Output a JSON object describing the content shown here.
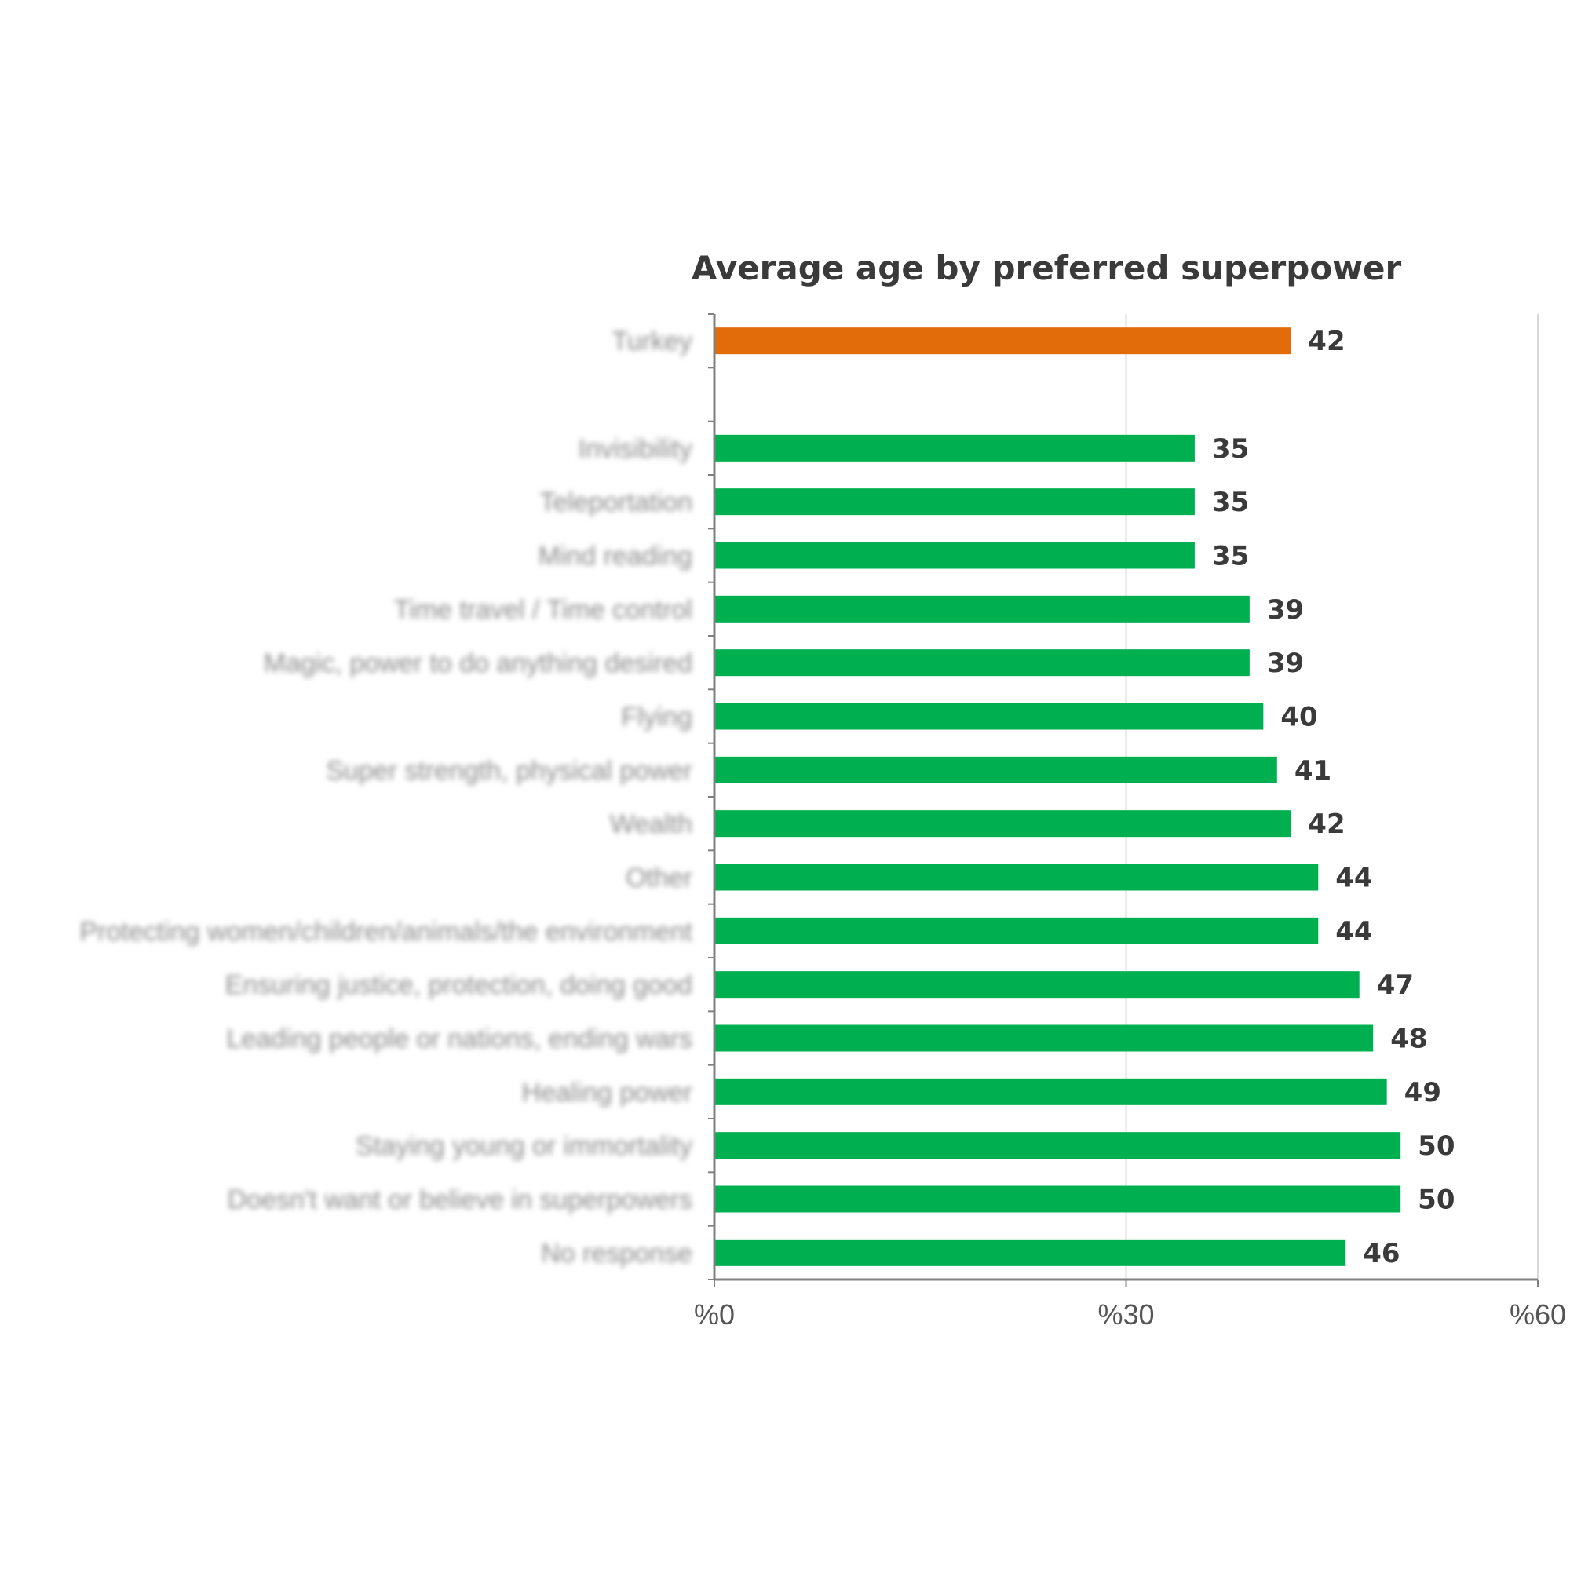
{
  "chart_data": {
    "type": "bar",
    "orientation": "horizontal",
    "title": "Average age by preferred superpower",
    "categories": [
      "Turkey",
      "",
      "Invisibility",
      "Teleportation",
      "Mind reading",
      "Time travel / Time control",
      "Magic, power to do anything desired",
      "Flying",
      "Super strength, physical power",
      "Wealth",
      "Other",
      "Protecting women/children/animals/the environment",
      "Ensuring justice, protection, doing good",
      "Leading people or nations, ending wars",
      "Healing power",
      "Staying young or immortality",
      "Doesn't want or believe in superpowers",
      "No response"
    ],
    "values": [
      42,
      null,
      35,
      35,
      35,
      39,
      39,
      40,
      41,
      42,
      44,
      44,
      47,
      48,
      49,
      50,
      50,
      46
    ],
    "value_labels": [
      "42",
      "",
      "35",
      "35",
      "35",
      "39",
      "39",
      "40",
      "41",
      "42",
      "44",
      "44",
      "47",
      "48",
      "49",
      "50",
      "50",
      "46"
    ],
    "bar_colors": [
      "#e36c0a",
      "",
      "#00b050",
      "#00b050",
      "#00b050",
      "#00b050",
      "#00b050",
      "#00b050",
      "#00b050",
      "#00b050",
      "#00b050",
      "#00b050",
      "#00b050",
      "#00b050",
      "#00b050",
      "#00b050",
      "#00b050",
      "#00b050"
    ],
    "xlim": [
      0,
      60
    ],
    "xticks": [
      0,
      30,
      60
    ],
    "xtick_labels": [
      "%0",
      "%30",
      "%60"
    ],
    "grid": "vertical",
    "legend": "none",
    "colors": {
      "highlight": "#e36c0a",
      "bar": "#00b050",
      "axis": "#808080",
      "gridline": "#d9d9d9"
    }
  }
}
